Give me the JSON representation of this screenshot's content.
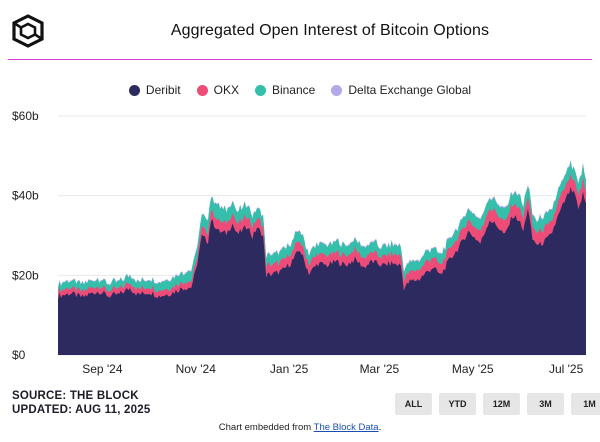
{
  "header": {
    "title": "Aggregated Open Interest of Bitcoin Options"
  },
  "footer": {
    "source": "SOURCE: THE BLOCK",
    "updated": "UPDATED: AUG 11, 2025",
    "embed_prefix": "Chart embedded from ",
    "embed_link": "The Block Data",
    "embed_suffix": "."
  },
  "range_buttons": [
    "ALL",
    "YTD",
    "12M",
    "3M",
    "1M"
  ],
  "chart_data": {
    "type": "area",
    "stacked": true,
    "title": "Aggregated Open Interest of Bitcoin Options",
    "ylim": [
      0,
      60
    ],
    "yticks": [
      0,
      20,
      40,
      60
    ],
    "ytick_labels": [
      "$0",
      "$20b",
      "$40b",
      "$60b"
    ],
    "xlim": [
      0,
      345
    ],
    "xticks": [
      {
        "label": "Sep '24",
        "x": 29
      },
      {
        "label": "Nov '24",
        "x": 90
      },
      {
        "label": "Jan '25",
        "x": 151
      },
      {
        "label": "Mar '25",
        "x": 210
      },
      {
        "label": "May '25",
        "x": 271
      },
      {
        "label": "Jul '25",
        "x": 332
      }
    ],
    "legend": "top-center",
    "series": [
      {
        "name": "Deribit",
        "color": "#2c2a5e",
        "points": [
          [
            0,
            14.8
          ],
          [
            8,
            15.5
          ],
          [
            16,
            14.5
          ],
          [
            22,
            15.5
          ],
          [
            27,
            16.0
          ],
          [
            33,
            14.8
          ],
          [
            40,
            15.2
          ],
          [
            47,
            16.8
          ],
          [
            52,
            15.2
          ],
          [
            60,
            15.8
          ],
          [
            66,
            14.8
          ],
          [
            74,
            15.5
          ],
          [
            81,
            16.8
          ],
          [
            87,
            17.0
          ],
          [
            90,
            21.0
          ],
          [
            94,
            29.8
          ],
          [
            98,
            28.5
          ],
          [
            100,
            34.0
          ],
          [
            105,
            31.0
          ],
          [
            110,
            30.5
          ],
          [
            114,
            33.0
          ],
          [
            117,
            30.2
          ],
          [
            124,
            32.5
          ],
          [
            127,
            29.5
          ],
          [
            130,
            32.0
          ],
          [
            134,
            30.0
          ],
          [
            136,
            20.0
          ],
          [
            142,
            20.5
          ],
          [
            146,
            21.0
          ],
          [
            152,
            23.0
          ],
          [
            158,
            26.5
          ],
          [
            164,
            20.5
          ],
          [
            170,
            23.0
          ],
          [
            176,
            22.5
          ],
          [
            182,
            23.5
          ],
          [
            188,
            22.5
          ],
          [
            194,
            24.0
          ],
          [
            200,
            22.0
          ],
          [
            205,
            23.5
          ],
          [
            212,
            22.5
          ],
          [
            218,
            23.0
          ],
          [
            224,
            22.5
          ],
          [
            226,
            16.8
          ],
          [
            230,
            18.5
          ],
          [
            236,
            19.0
          ],
          [
            240,
            20.5
          ],
          [
            245,
            22.0
          ],
          [
            250,
            20.0
          ],
          [
            256,
            24.0
          ],
          [
            262,
            27.0
          ],
          [
            268,
            31.0
          ],
          [
            271,
            30.0
          ],
          [
            276,
            28.0
          ],
          [
            282,
            34.0
          ],
          [
            288,
            32.0
          ],
          [
            292,
            30.0
          ],
          [
            297,
            35.0
          ],
          [
            301,
            34.0
          ],
          [
            304,
            31.0
          ],
          [
            307,
            37.0
          ],
          [
            310,
            29.0
          ],
          [
            314,
            27.5
          ],
          [
            318,
            28.5
          ],
          [
            322,
            30.0
          ],
          [
            327,
            35.0
          ],
          [
            331,
            38.5
          ],
          [
            335,
            41.5
          ],
          [
            338,
            40.0
          ],
          [
            340,
            36.0
          ],
          [
            343,
            40.5
          ],
          [
            345,
            38.0
          ]
        ]
      },
      {
        "name": "OKX",
        "color": "#ee4c78",
        "points": [
          [
            0,
            1.4
          ],
          [
            60,
            1.4
          ],
          [
            90,
            1.6
          ],
          [
            100,
            2.5
          ],
          [
            136,
            2.5
          ],
          [
            200,
            2.3
          ],
          [
            226,
            2.3
          ],
          [
            271,
            3.0
          ],
          [
            345,
            3.3
          ]
        ]
      },
      {
        "name": "Binance",
        "color": "#33bfa9",
        "points": [
          [
            0,
            1.7
          ],
          [
            60,
            1.8
          ],
          [
            90,
            2.6
          ],
          [
            100,
            3.5
          ],
          [
            136,
            2.5
          ],
          [
            200,
            2.5
          ],
          [
            226,
            2.2
          ],
          [
            271,
            2.7
          ],
          [
            345,
            3.0
          ]
        ]
      },
      {
        "name": "Delta Exchange Global",
        "color": "#b3a9e6",
        "points": [
          [
            0,
            0.2
          ],
          [
            345,
            0.3
          ]
        ]
      }
    ]
  }
}
